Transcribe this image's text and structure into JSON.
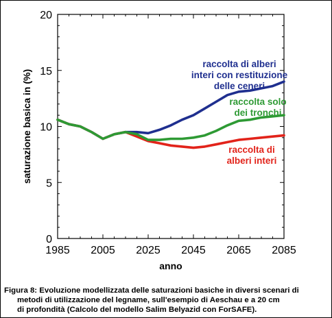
{
  "chart_data": {
    "type": "line",
    "xlabel": "anno",
    "ylabel": "saturazione basica in (%)",
    "xlim": [
      1985,
      2085
    ],
    "ylim": [
      0,
      20
    ],
    "x_ticks": [
      "1985",
      "2005",
      "2025",
      "2045",
      "2065",
      "2085"
    ],
    "y_ticks": [
      "0",
      "5",
      "10",
      "15",
      "20"
    ],
    "grid": false,
    "x": [
      1985,
      1990,
      1995,
      2000,
      2005,
      2010,
      2015,
      2020,
      2025,
      2030,
      2035,
      2040,
      2045,
      2050,
      2055,
      2060,
      2065,
      2070,
      2075,
      2080,
      2085
    ],
    "series": [
      {
        "name_lines": [
          "raccolta di alberi",
          "interi con restituzione",
          "delle ceneri"
        ],
        "color": "#1f2f8f",
        "values": [
          10.6,
          10.2,
          10.0,
          9.5,
          8.9,
          9.3,
          9.5,
          9.5,
          9.4,
          9.7,
          10.1,
          10.6,
          11.0,
          11.6,
          12.2,
          12.8,
          13.1,
          13.2,
          13.4,
          13.6,
          14.0
        ]
      },
      {
        "name_lines": [
          "raccolta solo",
          "dei tronchi"
        ],
        "color": "#2e9a34",
        "values": [
          10.6,
          10.2,
          10.0,
          9.5,
          8.9,
          9.3,
          9.5,
          9.3,
          8.8,
          8.8,
          8.9,
          8.9,
          9.0,
          9.2,
          9.6,
          10.1,
          10.5,
          10.6,
          10.8,
          10.9,
          11.0
        ]
      },
      {
        "name_lines": [
          "raccolta di",
          "alberi interi"
        ],
        "color": "#e2231a",
        "values": [
          10.6,
          10.2,
          10.0,
          9.5,
          8.9,
          9.3,
          9.5,
          9.1,
          8.7,
          8.5,
          8.3,
          8.2,
          8.1,
          8.2,
          8.4,
          8.6,
          8.8,
          8.9,
          9.0,
          9.1,
          9.2
        ]
      }
    ]
  },
  "caption": {
    "line1": "Figura 8: Evoluzione modellizzata delle saturazioni basiche in diversi scenari di",
    "line2": "metodi di utilizzazione del legname, sull'esempio di Aeschau e a 20 cm",
    "line3": "di profondità (Calcolo del modello Salim Belyazid con ForSAFE)."
  }
}
